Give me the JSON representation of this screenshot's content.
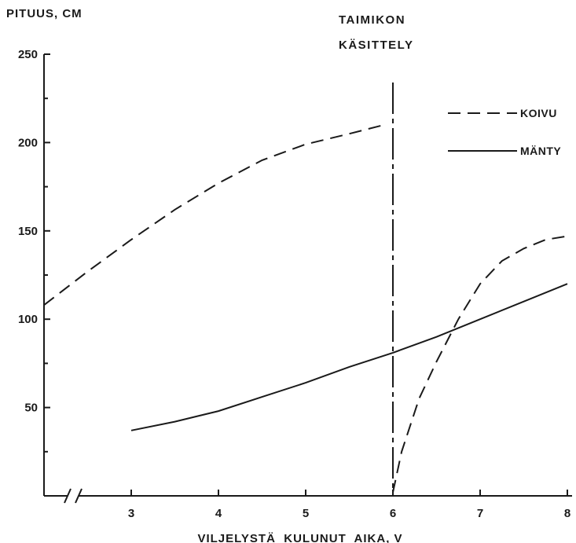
{
  "chart_data": {
    "type": "line",
    "ylabel": "PITUUS, CM",
    "xlabel": "VILJELYSTÄ  KULUNUT  AIKA, V",
    "xlim": [
      2.0,
      8.0
    ],
    "ylim": [
      0,
      250
    ],
    "x_ticks": [
      3,
      4,
      5,
      6,
      7,
      8
    ],
    "y_ticks": [
      50,
      100,
      150,
      200,
      250
    ],
    "x_axis_break": true,
    "grid": false,
    "legend_position": "top-right",
    "annotation": {
      "lines": [
        "TAIMIKON",
        "KÄSITTELY"
      ],
      "x": 6
    },
    "series": [
      {
        "name": "KOIVU",
        "style": "dashed",
        "segments": [
          [
            [
              2.0,
              108
            ],
            [
              2.5,
              127
            ],
            [
              3.0,
              145
            ],
            [
              3.5,
              162
            ],
            [
              4.0,
              177
            ],
            [
              4.5,
              190
            ],
            [
              5.0,
              199
            ],
            [
              5.5,
              205
            ],
            [
              5.9,
              210
            ]
          ],
          [
            [
              6.0,
              2
            ],
            [
              6.1,
              25
            ],
            [
              6.3,
              55
            ],
            [
              6.5,
              76
            ],
            [
              6.75,
              100
            ],
            [
              7.0,
              120
            ],
            [
              7.25,
              133
            ],
            [
              7.5,
              140
            ],
            [
              7.75,
              145
            ],
            [
              8.0,
              147
            ]
          ]
        ]
      },
      {
        "name": "MÄNTY",
        "style": "solid",
        "segments": [
          [
            [
              3.0,
              37
            ],
            [
              3.5,
              42
            ],
            [
              4.0,
              48
            ],
            [
              4.5,
              56
            ],
            [
              5.0,
              64
            ],
            [
              5.5,
              73
            ],
            [
              6.0,
              81
            ],
            [
              6.5,
              90
            ],
            [
              7.0,
              100
            ],
            [
              7.5,
              110
            ],
            [
              8.0,
              120
            ]
          ]
        ]
      }
    ]
  }
}
